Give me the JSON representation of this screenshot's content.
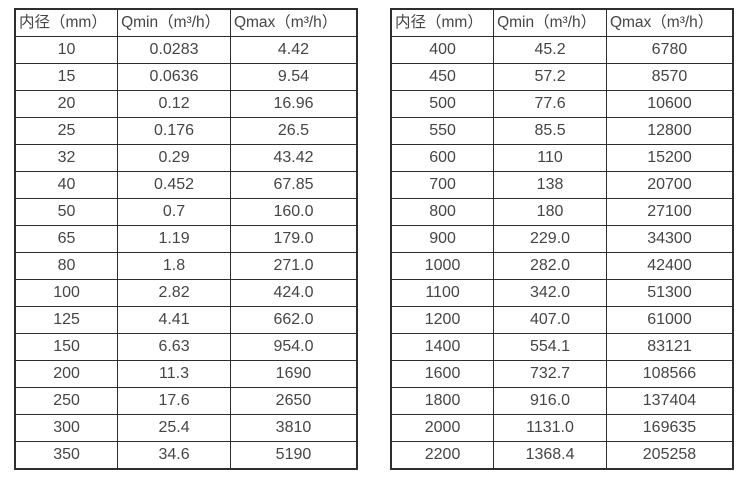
{
  "colors": {
    "background": "#ffffff",
    "border": "#2e2e2e",
    "text": "#454545"
  },
  "tables": [
    {
      "name": "flow-rate-table-small-diameters",
      "headers": [
        "内径（mm）",
        "Qmin（m³/h）",
        "Qmax（m³/h）"
      ],
      "rows": [
        [
          "10",
          "0.0283",
          "4.42"
        ],
        [
          "15",
          "0.0636",
          "9.54"
        ],
        [
          "20",
          "0.12",
          "16.96"
        ],
        [
          "25",
          "0.176",
          "26.5"
        ],
        [
          "32",
          "0.29",
          "43.42"
        ],
        [
          "40",
          "0.452",
          "67.85"
        ],
        [
          "50",
          "0.7",
          "160.0"
        ],
        [
          "65",
          "1.19",
          "179.0"
        ],
        [
          "80",
          "1.8",
          "271.0"
        ],
        [
          "100",
          "2.82",
          "424.0"
        ],
        [
          "125",
          "4.41",
          "662.0"
        ],
        [
          "150",
          "6.63",
          "954.0"
        ],
        [
          "200",
          "11.3",
          "1690"
        ],
        [
          "250",
          "17.6",
          "2650"
        ],
        [
          "300",
          "25.4",
          "3810"
        ],
        [
          "350",
          "34.6",
          "5190"
        ]
      ]
    },
    {
      "name": "flow-rate-table-large-diameters",
      "headers": [
        "内径（mm）",
        "Qmin（m³/h）",
        "Qmax（m³/h）"
      ],
      "rows": [
        [
          "400",
          "45.2",
          "6780"
        ],
        [
          "450",
          "57.2",
          "8570"
        ],
        [
          "500",
          "77.6",
          "10600"
        ],
        [
          "550",
          "85.5",
          "12800"
        ],
        [
          "600",
          "110",
          "15200"
        ],
        [
          "700",
          "138",
          "20700"
        ],
        [
          "800",
          "180",
          "27100"
        ],
        [
          "900",
          "229.0",
          "34300"
        ],
        [
          "1000",
          "282.0",
          "42400"
        ],
        [
          "1100",
          "342.0",
          "51300"
        ],
        [
          "1200",
          "407.0",
          "61000"
        ],
        [
          "1400",
          "554.1",
          "83121"
        ],
        [
          "1600",
          "732.7",
          "108566"
        ],
        [
          "1800",
          "916.0",
          "137404"
        ],
        [
          "2000",
          "1131.0",
          "169635"
        ],
        [
          "2200",
          "1368.4",
          "205258"
        ]
      ]
    }
  ]
}
